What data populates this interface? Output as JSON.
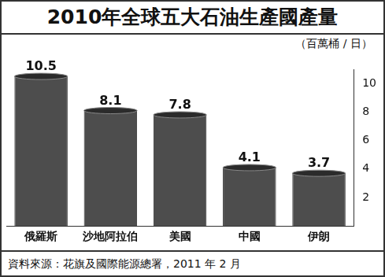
{
  "chart_data": {
    "type": "bar",
    "title": "2010年全球五大石油生產國產量",
    "y_label": "（百萬桶 / 日）",
    "source": "資料來源：花旗及國際能源總署，2011 年 2 月",
    "categories": [
      "俄羅斯",
      "沙地阿拉伯",
      "美國",
      "中國",
      "伊朗"
    ],
    "values": [
      10.5,
      8.1,
      7.8,
      4.1,
      3.7
    ],
    "color": "#4d4d4d",
    "ylim": [
      0,
      11
    ],
    "yticks": [
      2,
      4,
      6,
      8,
      10
    ],
    "grid": false,
    "data_labels": true
  }
}
